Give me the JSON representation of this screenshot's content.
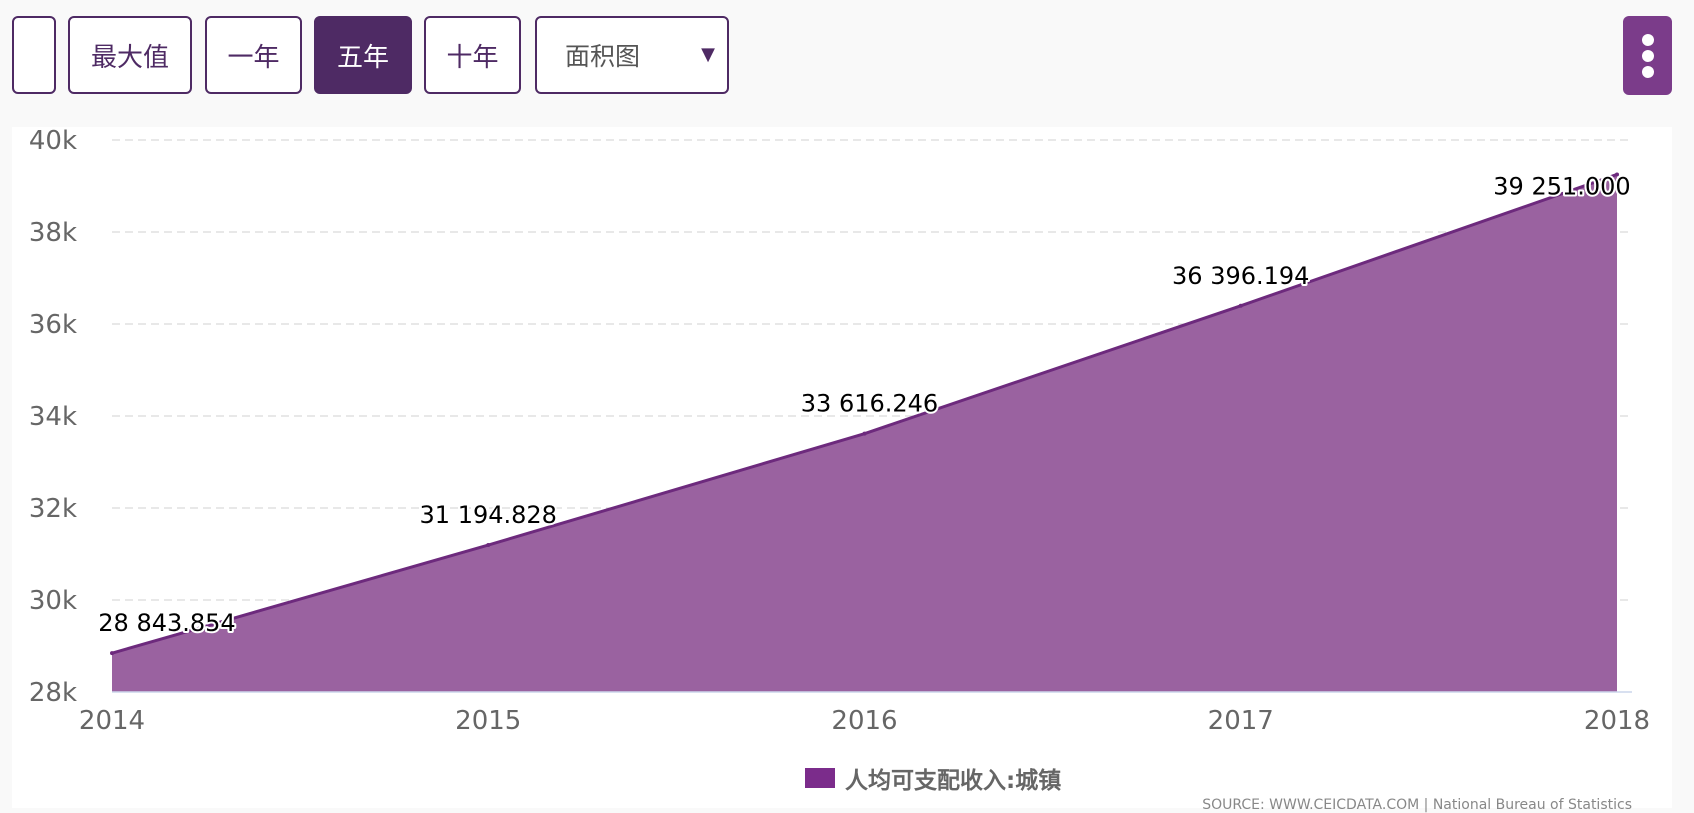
{
  "toolbar": {
    "buttons": [
      {
        "label": ""
      },
      {
        "label": "最大值"
      },
      {
        "label": "一年"
      },
      {
        "label": "五年",
        "active": true
      },
      {
        "label": "十年"
      }
    ],
    "chart_type_select": {
      "value": "面积图"
    }
  },
  "colors": {
    "accent": "#4e2a64",
    "series_fill": "#9a62a0",
    "series_line": "#6d2a7d",
    "legend_swatch": "#7b2c8b",
    "menu_button": "#7b3c8a"
  },
  "chart_data": {
    "type": "area",
    "title": "",
    "xlabel": "",
    "ylabel": "",
    "x": [
      2014,
      2015,
      2016,
      2017,
      2018
    ],
    "x_ticks": [
      "2014",
      "2015",
      "2016",
      "2017",
      "2018"
    ],
    "y_ticks": [
      "28k",
      "30k",
      "32k",
      "34k",
      "36k",
      "38k",
      "40k"
    ],
    "ylim": [
      28000,
      40000
    ],
    "grid": true,
    "legend_position": "bottom-center",
    "series": [
      {
        "name": "人均可支配收入:城镇",
        "values": [
          28843.854,
          31194.828,
          33616.246,
          36396.194,
          39251.0
        ],
        "data_labels": [
          "28 843.854",
          "31 194.828",
          "33 616.246",
          "36 396.194",
          "39 251.000"
        ]
      }
    ]
  },
  "source": "SOURCE: WWW.CEICDATA.COM | National Bureau of Statistics"
}
